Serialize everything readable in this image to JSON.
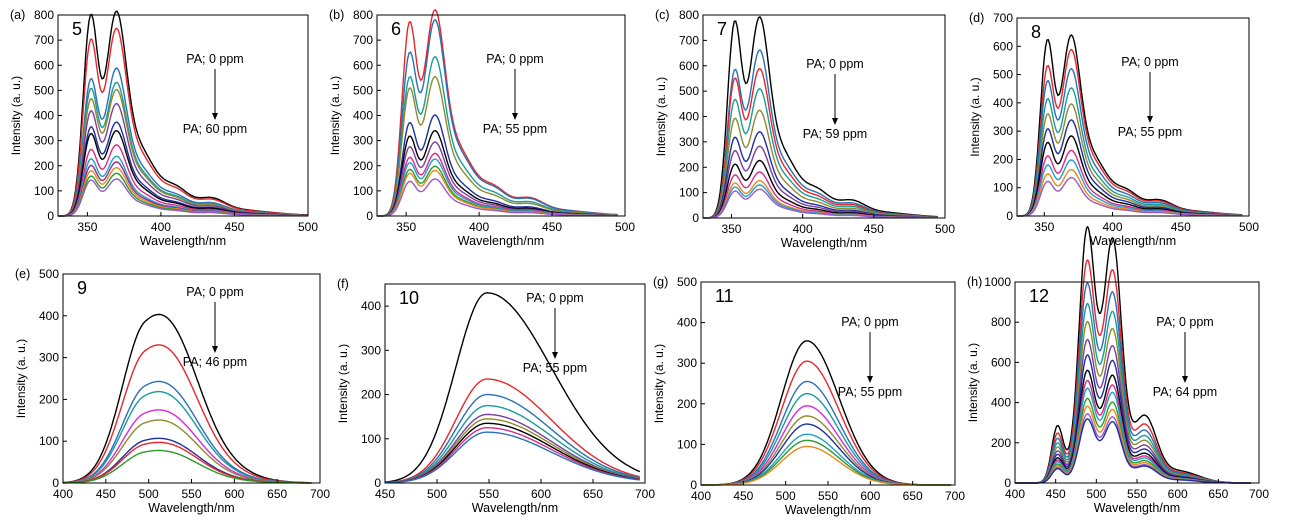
{
  "chart_data": [
    {
      "id": "a",
      "type": "line",
      "panel_label": "(a)",
      "compound": "5",
      "xlabel": "Wavelength/nm",
      "ylabel": "Intensity (a. u.)",
      "xlim": [
        330,
        500
      ],
      "ylim": [
        0,
        800
      ],
      "xticks": [
        350,
        400,
        450,
        500
      ],
      "yticks": [
        0,
        100,
        200,
        300,
        400,
        500,
        600,
        700,
        800
      ],
      "annotation": {
        "top": "PA; 0 ppm",
        "bottom": "PA; 60 ppm"
      },
      "shape": "A",
      "start": 330,
      "end": 500,
      "peaks": [
        760,
        720,
        665,
        660,
        515,
        520,
        480,
        470,
        440,
        445,
        395,
        395,
        335,
        330,
        310,
        300,
        250,
        250,
        215,
        210,
        190,
        190,
        170,
        170,
        150,
        150,
        135,
        130
      ],
      "colors": [
        "#000000",
        "#e8262b",
        "#2b6fb5",
        "#1a9b9b",
        "#8c8c2d",
        "#7a3e9d",
        "#1f2fa0",
        "#000000",
        "#d62b8a",
        "#22a0c8",
        "#8e2b8e",
        "#e88a1f",
        "#2a9c2a",
        "#9a5ac8"
      ],
      "description": "Emission spectra, peaks at ~352 and ~368 nm"
    },
    {
      "id": "b",
      "type": "line",
      "panel_label": "(b)",
      "compound": "6",
      "xlabel": "Wavelength/nm",
      "ylabel": "Intensity (a. u.)",
      "xlim": [
        330,
        500
      ],
      "ylim": [
        0,
        800
      ],
      "xticks": [
        350,
        400,
        450,
        500
      ],
      "yticks": [
        0,
        100,
        200,
        300,
        400,
        500,
        600,
        700,
        800
      ],
      "annotation": {
        "top": "PA; 0 ppm",
        "bottom": "PA; 55 ppm"
      },
      "shape": "A",
      "start": 330,
      "end": 495,
      "peaks": [
        730,
        725,
        610,
        690,
        520,
        560,
        480,
        490,
        350,
        355,
        300,
        300,
        260,
        260,
        220,
        220,
        200,
        200,
        175,
        175,
        160,
        160,
        130,
        130
      ],
      "colors": [
        "#e8262b",
        "#2b6fb5",
        "#1a9b9b",
        "#8c8c2d",
        "#1f2fa0",
        "#000000",
        "#7a3e9d",
        "#d62b8a",
        "#22a0c8",
        "#2a9c2a",
        "#e88a1f",
        "#9a5ac8"
      ]
    },
    {
      "id": "c",
      "type": "line",
      "panel_label": "(c)",
      "compound": "7",
      "xlabel": "Wavelength/nm",
      "ylabel": "Intensity (a. u.)",
      "xlim": [
        330,
        500
      ],
      "ylim": [
        0,
        800
      ],
      "xticks": [
        350,
        400,
        450,
        500
      ],
      "yticks": [
        0,
        100,
        200,
        300,
        400,
        500,
        600,
        700,
        800
      ],
      "annotation": {
        "top": "PA; 0 ppm",
        "bottom": "PA; 59 ppm"
      },
      "shape": "A",
      "start": 330,
      "end": 495,
      "peaks": [
        735,
        700,
        550,
        585,
        520,
        520,
        440,
        450,
        370,
        375,
        300,
        300,
        250,
        250,
        200,
        200,
        160,
        160,
        130,
        130,
        115,
        115,
        100,
        100
      ],
      "colors": [
        "#000000",
        "#2b6fb5",
        "#e8262b",
        "#1a9b9b",
        "#8c8c2d",
        "#1f2fa0",
        "#7a3e9d",
        "#000000",
        "#d62b8a",
        "#e88a1f",
        "#22a0c8",
        "#9a5ac8"
      ]
    },
    {
      "id": "d",
      "type": "line",
      "panel_label": "(d)",
      "compound": "8",
      "xlabel": "Wavelength/nm",
      "ylabel": "Intensity (a. u.)",
      "xlim": [
        330,
        500
      ],
      "ylim": [
        0,
        700
      ],
      "xticks": [
        350,
        400,
        450,
        500
      ],
      "yticks": [
        0,
        100,
        200,
        300,
        400,
        500,
        600,
        700
      ],
      "annotation": {
        "top": "PA; 0 ppm",
        "bottom": "PA; 55 ppm"
      },
      "shape": "A",
      "start": 330,
      "end": 495,
      "peaks": [
        590,
        565,
        500,
        520,
        450,
        460,
        390,
        400,
        340,
        350,
        290,
        300,
        245,
        250,
        200,
        205,
        170,
        175,
        140,
        145,
        115,
        120
      ],
      "colors": [
        "#000000",
        "#e8262b",
        "#2b6fb5",
        "#1a9b9b",
        "#8c8c2d",
        "#1f2fa0",
        "#000000",
        "#d62b8a",
        "#22a0c8",
        "#e88a1f",
        "#9a5ac8"
      ]
    },
    {
      "id": "e",
      "type": "line",
      "panel_label": "(e)",
      "compound": "9",
      "xlabel": "Wavelength/nm",
      "ylabel": "Intensity (a. u.)",
      "xlim": [
        400,
        700
      ],
      "ylim": [
        0,
        500
      ],
      "xticks": [
        400,
        450,
        500,
        550,
        600,
        650,
        700
      ],
      "yticks": [
        0,
        100,
        200,
        300,
        400,
        500
      ],
      "annotation": {
        "top": "PA; 0 ppm",
        "bottom": "PA; 46 ppm"
      },
      "shape": "B",
      "start": 400,
      "end": 690,
      "peaks": [
        415,
        340,
        250,
        225,
        180,
        155,
        110,
        100,
        80
      ],
      "colors": [
        "#000000",
        "#e8262b",
        "#2b6fb5",
        "#1a9b9b",
        "#d62bd6",
        "#8c8c2d",
        "#1f2fa0",
        "#e8262b",
        "#2a9c2a"
      ]
    },
    {
      "id": "f",
      "type": "line",
      "panel_label": "(f)",
      "compound": "10",
      "xlabel": "Wavelength/nm",
      "ylabel": "Intensity (a. u.)",
      "xlim": [
        450,
        700
      ],
      "ylim": [
        0,
        450
      ],
      "xticks": [
        450,
        500,
        550,
        600,
        650,
        700
      ],
      "yticks": [
        0,
        100,
        200,
        300,
        400
      ],
      "annotation": {
        "top": "PA; 0 ppm",
        "bottom": "PA; 55 ppm"
      },
      "shape": "C",
      "start": 450,
      "end": 695,
      "peaks": [
        430,
        235,
        200,
        175,
        155,
        145,
        135,
        125,
        115
      ],
      "colors": [
        "#000000",
        "#e8262b",
        "#2b6fb5",
        "#1a9b9b",
        "#7a3e9d",
        "#8c8c2d",
        "#000000",
        "#d62b8a",
        "#2b6fb5"
      ]
    },
    {
      "id": "g",
      "type": "line",
      "panel_label": "(g)",
      "compound": "11",
      "xlabel": "Wavelength/nm",
      "ylabel": "Intensity (a. u.)",
      "xlim": [
        400,
        700
      ],
      "ylim": [
        0,
        500
      ],
      "xticks": [
        400,
        450,
        500,
        550,
        600,
        650,
        700
      ],
      "yticks": [
        0,
        100,
        200,
        300,
        400,
        500
      ],
      "annotation": {
        "top": "PA; 0 ppm",
        "bottom": "PA; 55 ppm"
      },
      "shape": "D",
      "start": 400,
      "end": 695,
      "peaks": [
        355,
        305,
        255,
        225,
        195,
        170,
        150,
        125,
        110,
        95
      ],
      "colors": [
        "#000000",
        "#e8262b",
        "#2b6fb5",
        "#1a9b9b",
        "#d62bd6",
        "#8c8c2d",
        "#1f2fa0",
        "#22a0c8",
        "#2a9c2a",
        "#e88a1f"
      ]
    },
    {
      "id": "h",
      "type": "line",
      "panel_label": "(h)",
      "compound": "12",
      "xlabel": "Wavelength/nm",
      "ylabel": "Intensity (a. u.)",
      "xlim": [
        400,
        700
      ],
      "ylim": [
        0,
        1000
      ],
      "xticks": [
        400,
        450,
        500,
        550,
        600,
        650,
        700
      ],
      "yticks": [
        0,
        200,
        400,
        600,
        800,
        1000
      ],
      "annotation": {
        "top": "PA; 0 ppm",
        "bottom": "PA; 64 ppm"
      },
      "shape": "E",
      "start": 400,
      "end": 690,
      "peaks": [
        1000,
        870,
        780,
        700,
        630,
        560,
        500,
        440,
        400,
        370,
        330,
        300,
        270,
        250
      ],
      "colors": [
        "#000000",
        "#e8262b",
        "#2b6fb5",
        "#1a9b9b",
        "#8c8c2d",
        "#7a3e9d",
        "#1f2fa0",
        "#000000",
        "#d62b8a",
        "#22a0c8",
        "#2a9c2a",
        "#e88a1f",
        "#9a5ac8",
        "#1f2fa0"
      ]
    }
  ]
}
